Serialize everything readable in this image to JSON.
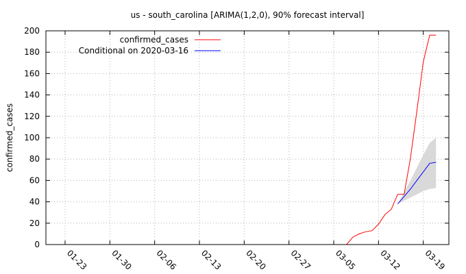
{
  "chart_data": {
    "type": "line",
    "title": "us - south_carolina [ARIMA(1,2,0), 90% forecast interval]",
    "xlabel": "",
    "ylabel": "confirmed_cases",
    "x_axis": {
      "unit": "date",
      "start": "2020-01-20",
      "end": "2020-03-23",
      "ticks": [
        "01-23",
        "01-30",
        "02-06",
        "02-13",
        "02-20",
        "02-27",
        "03-05",
        "03-12",
        "03-19"
      ],
      "tick_dates": [
        "2020-01-23",
        "2020-01-30",
        "2020-02-06",
        "2020-02-13",
        "2020-02-20",
        "2020-02-27",
        "2020-03-05",
        "2020-03-12",
        "2020-03-19"
      ]
    },
    "ylim": [
      0,
      200
    ],
    "yticks": [
      "0",
      "20",
      "40",
      "60",
      "80",
      "100",
      "120",
      "140",
      "160",
      "180",
      "200"
    ],
    "grid": true,
    "legend_position": "top-left",
    "series": [
      {
        "name": "confirmed_cases",
        "color": "#ff0000",
        "points": [
          [
            "2020-03-07",
            0
          ],
          [
            "2020-03-08",
            7
          ],
          [
            "2020-03-09",
            10
          ],
          [
            "2020-03-10",
            12
          ],
          [
            "2020-03-11",
            13
          ],
          [
            "2020-03-12",
            19
          ],
          [
            "2020-03-13",
            28
          ],
          [
            "2020-03-14",
            33
          ],
          [
            "2020-03-15",
            47
          ],
          [
            "2020-03-16",
            47
          ],
          [
            "2020-03-17",
            81
          ],
          [
            "2020-03-18",
            125
          ],
          [
            "2020-03-19",
            171
          ],
          [
            "2020-03-20",
            196
          ],
          [
            "2020-03-21",
            196
          ]
        ]
      },
      {
        "name": "Conditional on 2020-03-16",
        "color": "#0000ff",
        "points": [
          [
            "2020-03-15",
            38
          ],
          [
            "2020-03-16",
            45
          ],
          [
            "2020-03-17",
            52
          ],
          [
            "2020-03-18",
            60
          ],
          [
            "2020-03-19",
            68
          ],
          [
            "2020-03-20",
            76
          ],
          [
            "2020-03-21",
            77
          ]
        ],
        "interval_90": {
          "color": "#d9d9d9",
          "lower": [
            [
              "2020-03-15",
              38
            ],
            [
              "2020-03-16",
              41
            ],
            [
              "2020-03-17",
              44
            ],
            [
              "2020-03-18",
              47
            ],
            [
              "2020-03-19",
              50
            ],
            [
              "2020-03-20",
              52
            ],
            [
              "2020-03-21",
              53
            ]
          ],
          "upper": [
            [
              "2020-03-15",
              38
            ],
            [
              "2020-03-16",
              49
            ],
            [
              "2020-03-17",
              60
            ],
            [
              "2020-03-18",
              72
            ],
            [
              "2020-03-19",
              84
            ],
            [
              "2020-03-20",
              95
            ],
            [
              "2020-03-21",
              100
            ]
          ]
        }
      }
    ]
  }
}
